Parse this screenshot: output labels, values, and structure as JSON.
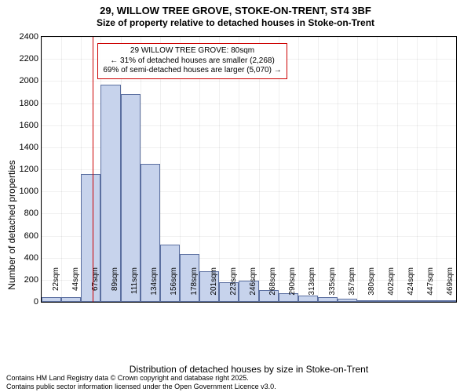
{
  "title_line1": "29, WILLOW TREE GROVE, STOKE-ON-TRENT, ST4 3BF",
  "title_line2": "Size of property relative to detached houses in Stoke-on-Trent",
  "ylabel": "Number of detached properties",
  "xlabel": "Distribution of detached houses by size in Stoke-on-Trent",
  "footer_line1": "Contains HM Land Registry data © Crown copyright and database right 2025.",
  "footer_line2": "Contains public sector information licensed under the Open Government Licence v3.0.",
  "chart": {
    "type": "histogram",
    "background_color": "#ffffff",
    "grid_color": "rgba(0,0,0,0.06)",
    "bar_fill": "#c7d3ec",
    "bar_border": "#5b6fa0",
    "marker_color": "#cc0000",
    "annot_border": "#cc0000",
    "text_color": "#000000",
    "ylim": [
      0,
      2400
    ],
    "yticks": [
      0,
      200,
      400,
      600,
      800,
      1000,
      1200,
      1400,
      1600,
      1800,
      2000,
      2200,
      2400
    ],
    "xticks": [
      "22sqm",
      "44sqm",
      "67sqm",
      "89sqm",
      "111sqm",
      "134sqm",
      "156sqm",
      "178sqm",
      "201sqm",
      "223sqm",
      "246sqm",
      "268sqm",
      "290sqm",
      "313sqm",
      "335sqm",
      "357sqm",
      "380sqm",
      "402sqm",
      "424sqm",
      "447sqm",
      "469sqm"
    ],
    "values": [
      40,
      40,
      1160,
      1970,
      1880,
      1250,
      520,
      430,
      280,
      180,
      190,
      110,
      80,
      60,
      40,
      30,
      15,
      10,
      10,
      8,
      2
    ],
    "highlight_slot": 2.6,
    "title_fontsize": 13,
    "subtitle_fontsize": 12,
    "label_fontsize": 12,
    "ytick_fontsize": 11,
    "xtick_fontsize": 10,
    "annot_fontsize": 10
  },
  "annotation": {
    "line1": "29 WILLOW TREE GROVE: 80sqm",
    "line2": "← 31% of detached houses are smaller (2,268)",
    "line3": "69% of semi-detached houses are larger (5,070) →"
  }
}
